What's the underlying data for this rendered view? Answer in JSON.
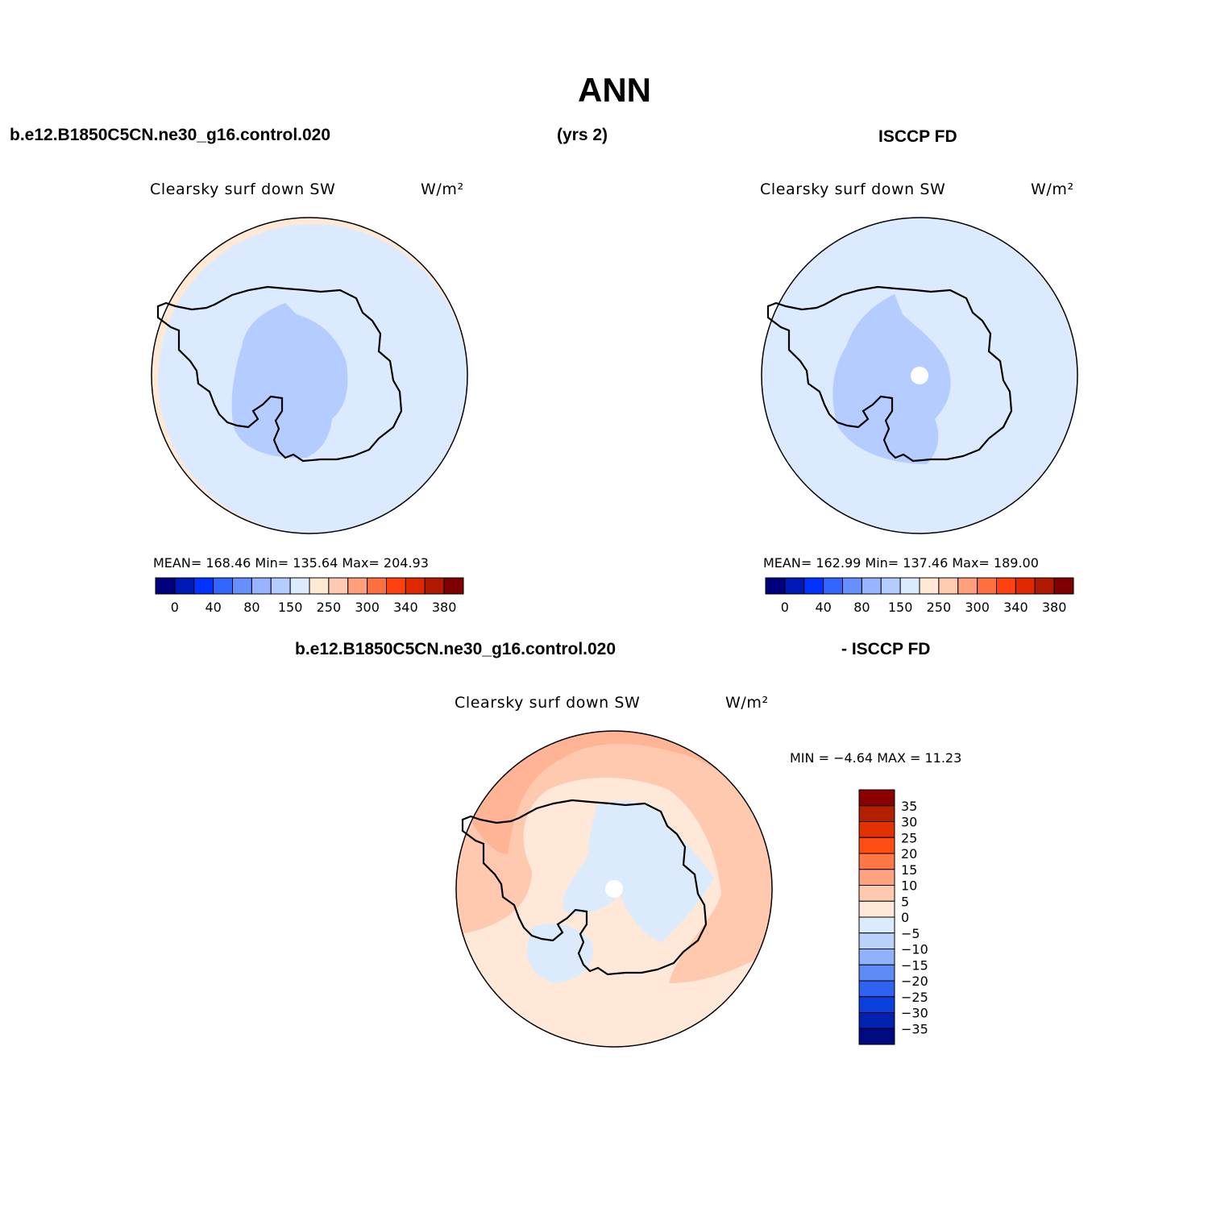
{
  "title": "ANN",
  "header": {
    "case_name": "b.e12.B1850C5CN.ne30_g16.control.020",
    "years": "(yrs 2)",
    "obs_name": "ISCCP FD"
  },
  "diff_header": {
    "case_name": "b.e12.B1850C5CN.ne30_g16.control.020",
    "obs_name": "- ISCCP FD"
  },
  "panels": {
    "model": {
      "variable": "Clearsky surf down SW",
      "units": "W/m²",
      "stats": "MEAN= 168.46   Min= 135.64   Max= 204.93"
    },
    "obs": {
      "variable": "Clearsky surf down SW",
      "units": "W/m²",
      "stats": "MEAN= 162.99   Min= 137.46   Max= 189.00"
    },
    "diff": {
      "variable": "Clearsky surf down SW",
      "units": "W/m²",
      "stats": "MIN =   −4.64  MAX =   11.23"
    }
  },
  "colorbar_abs": {
    "colors": [
      "#00007f",
      "#0019b4",
      "#0033ff",
      "#3366ff",
      "#6690ff",
      "#99b4ff",
      "#b4ccff",
      "#dbeaff",
      "#ffe8d4",
      "#ffcab0",
      "#ffa07a",
      "#ff7040",
      "#ff4010",
      "#e02800",
      "#b01a00",
      "#7f0000"
    ],
    "tick_labels": [
      "0",
      "40",
      "80",
      "150",
      "250",
      "300",
      "340",
      "380"
    ]
  },
  "colorbar_diff": {
    "colors": [
      "#8b0000",
      "#b22000",
      "#e03300",
      "#ff4d14",
      "#ff7744",
      "#ffa280",
      "#ffc9b0",
      "#ffe8d8",
      "#dcebfc",
      "#b8d2fb",
      "#8fb2f8",
      "#5e8cf5",
      "#2f62f0",
      "#0a3fdc",
      "#0022b0",
      "#000a80"
    ],
    "tick_labels": [
      "35",
      "30",
      "25",
      "20",
      "15",
      "10",
      "5",
      "0",
      "−5",
      "−10",
      "−15",
      "−20",
      "−25",
      "−30",
      "−35"
    ]
  }
}
